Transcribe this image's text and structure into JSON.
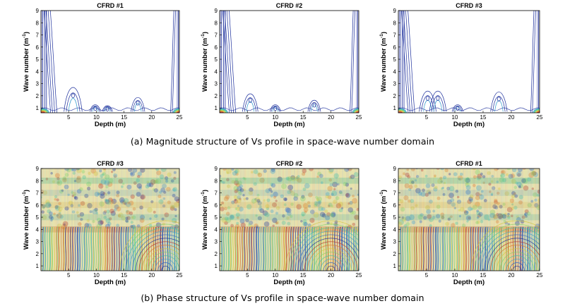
{
  "captions": {
    "a": "(a) Magnitude structure of Vs profile in space-wave number domain",
    "b": "(b) Phase structure of Vs profile in space-wave number domain"
  },
  "axis_text": {
    "xlabel": "Depth (m)",
    "ylabel_main": "Wave number (m",
    "ylabel_sup": "-1",
    "ylabel_end": ")"
  },
  "chart_data": [
    {
      "type": "heatmap",
      "plot": "contour",
      "row": "a",
      "title": "CFRD #1",
      "xlabel": "Depth (m)",
      "ylabel": "Wave number (m-1)",
      "xlim": [
        0,
        25
      ],
      "ylim": [
        0.6,
        9
      ],
      "xticks": [
        5,
        10,
        15,
        20,
        25
      ],
      "yticks": [
        1,
        2,
        3,
        4,
        5,
        6,
        7,
        8,
        9
      ],
      "peaks": [
        {
          "depth": 5.8,
          "wave_number": 3.1
        },
        {
          "depth": 9.8,
          "wave_number": 1.2
        },
        {
          "depth": 12.0,
          "wave_number": 1.1
        },
        {
          "depth": 17.5,
          "wave_number": 2.0
        }
      ]
    },
    {
      "type": "heatmap",
      "plot": "contour",
      "row": "a",
      "title": "CFRD #2",
      "xlabel": "Depth (m)",
      "ylabel": "Wave number (m-1)",
      "xlim": [
        0,
        25
      ],
      "ylim": [
        0.6,
        9
      ],
      "xticks": [
        5,
        10,
        15,
        20,
        25
      ],
      "yticks": [
        1,
        2,
        3,
        4,
        5,
        6,
        7,
        8,
        9
      ],
      "peaks": [
        {
          "depth": 5.5,
          "wave_number": 2.4
        },
        {
          "depth": 10.0,
          "wave_number": 1.2
        },
        {
          "depth": 17.0,
          "wave_number": 1.7
        }
      ]
    },
    {
      "type": "heatmap",
      "plot": "contour",
      "row": "a",
      "title": "CFRD #3",
      "xlabel": "Depth (m)",
      "ylabel": "Wave number (m-1)",
      "xlim": [
        0,
        25
      ],
      "ylim": [
        0.6,
        9
      ],
      "xticks": [
        5,
        10,
        15,
        20,
        25
      ],
      "yticks": [
        1,
        2,
        3,
        4,
        5,
        6,
        7,
        8,
        9
      ],
      "peaks": [
        {
          "depth": 5.2,
          "wave_number": 2.7
        },
        {
          "depth": 7.0,
          "wave_number": 2.7
        },
        {
          "depth": 10.5,
          "wave_number": 1.2
        },
        {
          "depth": 17.8,
          "wave_number": 2.6
        }
      ]
    },
    {
      "type": "heatmap",
      "plot": "contour",
      "row": "b",
      "title": "CFRD #3",
      "xlabel": "Depth (m)",
      "ylabel": "Wave number (m-1)",
      "xlim": [
        0,
        25
      ],
      "ylim": [
        0.6,
        9
      ],
      "xticks": [
        5,
        10,
        15,
        20,
        25
      ],
      "yticks": [
        1,
        2,
        3,
        4,
        5,
        6,
        7,
        8,
        9
      ],
      "column_period_m": 2.5,
      "fan_center_depth": 22.5
    },
    {
      "type": "heatmap",
      "plot": "contour",
      "row": "b",
      "title": "CFRD #2",
      "xlabel": "Depth (m)",
      "ylabel": "Wave number (m-1)",
      "xlim": [
        0,
        25
      ],
      "ylim": [
        0.6,
        9
      ],
      "xticks": [
        5,
        10,
        15,
        20,
        25
      ],
      "yticks": [
        1,
        2,
        3,
        4,
        5,
        6,
        7,
        8,
        9
      ],
      "column_period_m": 2.5,
      "fan_center_depth": 20.0
    },
    {
      "type": "heatmap",
      "plot": "contour",
      "row": "b",
      "title": "CFRD #1",
      "xlabel": "Depth (m)",
      "ylabel": "Wave number (m-1)",
      "xlim": [
        0,
        25
      ],
      "ylim": [
        0.6,
        9
      ],
      "xticks": [
        5,
        10,
        15,
        20,
        25
      ],
      "yticks": [
        1,
        2,
        3,
        4,
        5,
        6,
        7,
        8,
        9
      ],
      "column_period_m": 2.5,
      "fan_center_depth": 21.0
    }
  ]
}
